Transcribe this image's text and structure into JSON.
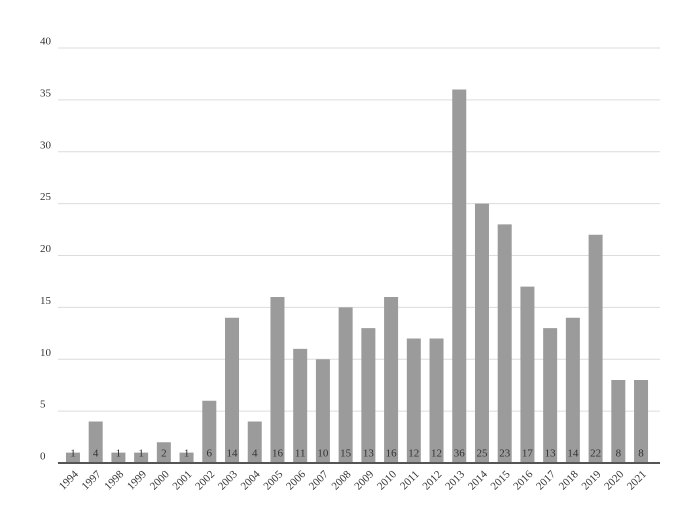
{
  "chart_data": {
    "type": "bar",
    "categories": [
      "1994",
      "1997",
      "1998",
      "1999",
      "2000",
      "2001",
      "2002",
      "2003",
      "2004",
      "2005",
      "2006",
      "2007",
      "2008",
      "2009",
      "2010",
      "2011",
      "2012",
      "2013",
      "2014",
      "2015",
      "2016",
      "2017",
      "2018",
      "2019",
      "2020",
      "2021"
    ],
    "values": [
      1,
      4,
      1,
      1,
      2,
      1,
      6,
      14,
      4,
      16,
      11,
      10,
      15,
      13,
      16,
      12,
      12,
      36,
      25,
      23,
      17,
      13,
      14,
      22,
      8,
      8
    ],
    "color": "#9b9b9b",
    "ylim": [
      0,
      40
    ],
    "yticks": [
      0,
      5,
      10,
      15,
      20,
      25,
      30,
      35,
      40
    ],
    "grid": true,
    "data_labels": true
  }
}
